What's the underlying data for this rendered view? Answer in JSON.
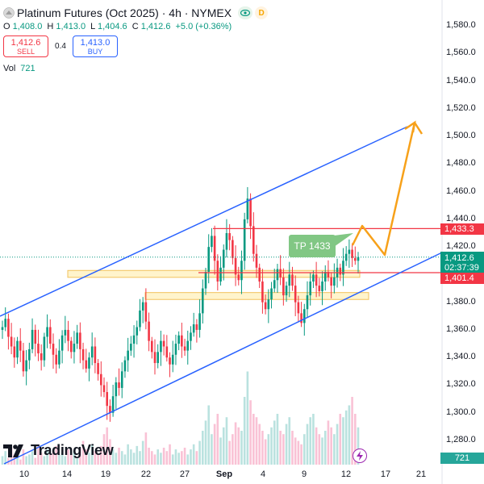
{
  "header": {
    "symbol_title": "Platinum Futures (Oct 2025) · 4h · NYMEX",
    "d_badge": "D",
    "ohlc": {
      "o_key": "O",
      "o_val": "1,408.0",
      "h_key": "H",
      "h_val": "1,413.0",
      "l_key": "L",
      "l_val": "1,404.6",
      "c_key": "C",
      "c_val": "1,412.6",
      "change": "+5.0 (+0.36%)"
    },
    "sell_price": "1,412.6",
    "sell_label": "SELL",
    "spread": "0.4",
    "buy_price": "1,413.0",
    "buy_label": "BUY",
    "vol_key": "Vol",
    "vol_val": "721"
  },
  "price_axis": {
    "ticks": [
      "1,580.0",
      "1,560.0",
      "1,540.0",
      "1,520.0",
      "1,500.0",
      "1,480.0",
      "1,460.0",
      "1,440.0",
      "1,420.0",
      "1,380.0",
      "1,360.0",
      "1,340.0",
      "1,320.0",
      "1,300.0",
      "1,280.0"
    ]
  },
  "time_axis": {
    "ticks": [
      "10",
      "14",
      "19",
      "22",
      "27",
      "Sep",
      "4",
      "9",
      "12",
      "17",
      "21"
    ]
  },
  "price_tags": {
    "upper_line": "1,433.3",
    "last_price": "1,412.6",
    "countdown": "02:37:39",
    "lower_line": "1,401.4",
    "volume": "721"
  },
  "annotations": {
    "tp_label": "TP 1433"
  },
  "brand": {
    "logo_text": "TradingView"
  },
  "colors": {
    "up": "#089981",
    "down": "#f23645",
    "channel": "#2962ff",
    "projection": "#f7a11a",
    "zone_fill": "#fff3c4",
    "zone_border": "#f0b840",
    "resistance": "#f23645"
  },
  "chart_data": {
    "type": "candlestick",
    "instrument": "Platinum Futures (Oct 2025)",
    "timeframe": "4h",
    "ylim": [
      1262,
      1596
    ],
    "price_axis_ticks": [
      1580,
      1560,
      1540,
      1520,
      1500,
      1480,
      1460,
      1440,
      1420,
      1380,
      1360,
      1340,
      1320,
      1300,
      1280
    ],
    "time_ticks": [
      "10",
      "14",
      "19",
      "22",
      "27",
      "Sep",
      "4",
      "9",
      "12",
      "17",
      "21"
    ],
    "last_close": 1412.6,
    "horizontal_lines": [
      1433.3,
      1401.4
    ],
    "support_zones": [
      [
        1398,
        1403
      ],
      [
        1382,
        1387
      ]
    ],
    "take_profit": 1433,
    "closes_approx": [
      1362,
      1368,
      1355,
      1348,
      1340,
      1352,
      1345,
      1330,
      1338,
      1346,
      1360,
      1350,
      1343,
      1338,
      1355,
      1362,
      1350,
      1342,
      1335,
      1345,
      1356,
      1360,
      1352,
      1344,
      1350,
      1358,
      1346,
      1338,
      1332,
      1340,
      1348,
      1336,
      1328,
      1320,
      1315,
      1305,
      1300,
      1312,
      1322,
      1318,
      1330,
      1338,
      1345,
      1350,
      1356,
      1362,
      1374,
      1380,
      1366,
      1352,
      1344,
      1336,
      1344,
      1352,
      1348,
      1340,
      1335,
      1342,
      1350,
      1356,
      1348,
      1345,
      1352,
      1358,
      1364,
      1360,
      1372,
      1390,
      1402,
      1420,
      1428,
      1410,
      1395,
      1405,
      1418,
      1430,
      1425,
      1412,
      1400,
      1396,
      1410,
      1440,
      1455,
      1435,
      1415,
      1405,
      1395,
      1380,
      1375,
      1382,
      1390,
      1396,
      1404,
      1398,
      1385,
      1392,
      1400,
      1392,
      1380,
      1372,
      1365,
      1375,
      1385,
      1395,
      1400,
      1392,
      1388,
      1395,
      1402,
      1398,
      1392,
      1398,
      1405,
      1400,
      1410,
      1415,
      1418,
      1412,
      1410,
      1412.6
    ],
    "volume_approx": [
      5,
      8,
      4,
      10,
      6,
      7,
      3,
      9,
      5,
      6,
      8,
      4,
      12,
      7,
      5,
      9,
      6,
      8,
      11,
      6,
      7,
      5,
      9,
      6,
      8,
      4,
      10,
      14,
      9,
      7,
      12,
      8,
      6,
      11,
      18,
      22,
      15,
      9,
      7,
      10,
      8,
      6,
      12,
      9,
      7,
      11,
      8,
      14,
      19,
      10,
      8,
      6,
      9,
      7,
      10,
      8,
      12,
      6,
      9,
      7,
      8,
      10,
      6,
      9,
      12,
      8,
      14,
      20,
      26,
      35,
      18,
      24,
      30,
      16,
      22,
      28,
      14,
      18,
      25,
      22,
      20,
      40,
      55,
      38,
      30,
      28,
      24,
      20,
      15,
      18,
      22,
      26,
      30,
      20,
      18,
      24,
      28,
      20,
      16,
      14,
      12,
      18,
      24,
      28,
      30,
      22,
      18,
      16,
      20,
      26,
      22,
      18,
      24,
      30,
      28,
      32,
      35,
      40,
      30,
      22
    ]
  }
}
